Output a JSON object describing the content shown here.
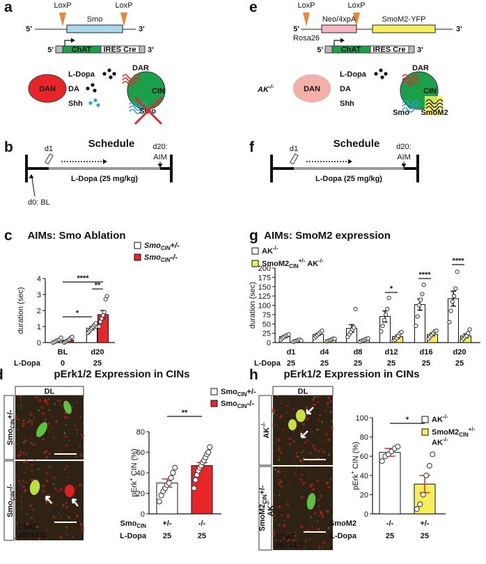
{
  "figure": {
    "a": {
      "letter": "a",
      "loxp": [
        "LoxP",
        "LoxP"
      ],
      "five": "5'",
      "gene": "Smo",
      "three": "3'",
      "driver": {
        "five": "5'",
        "chat": "ChAT",
        "ires": "IRES Cre",
        "three": "3'"
      },
      "dan": "DAN",
      "l_dopa": "L-Dopa",
      "da": "DA",
      "shh": "Shh",
      "dar": "DAR",
      "cin": "CIN",
      "smo": "Smo"
    },
    "e": {
      "letter": "e",
      "loxp": [
        "LoxP",
        "LoxP"
      ],
      "five": "5'",
      "stop": "Neo/4xpA",
      "gene": "SmoM2-YFP",
      "three": "3'",
      "locus": "Rosa26",
      "driver": {
        "five": "5'",
        "chat": "ChAT",
        "ires": "IRES Cre",
        "three": "3'"
      },
      "genotype": [
        {
          "text": "AK",
          "sup": "-/-"
        }
      ],
      "dan": "DAN",
      "l_dopa": "L-Dopa",
      "da": "DA",
      "shh": "Shh",
      "dar": "DAR",
      "cin": "CIN",
      "smo": "Smo",
      "smom2": "SmoM2"
    },
    "b": {
      "letter": "b",
      "title": "Schedule",
      "d1": "d1",
      "end": "d20:",
      "aim": "AIM",
      "drug": "L-Dopa (25 mg/kg)",
      "start": "d0: BL"
    },
    "f": {
      "letter": "f",
      "title": "Schedule",
      "d1": "d1",
      "end": "d20:",
      "aim": "AIM",
      "drug": "L-Dopa (25 mg/kg)"
    },
    "d": {
      "letter": "d",
      "title": "pErk1/2 Expression in CINs",
      "region": "DL",
      "rows": [
        [
          [
            {
              "text": "Smo",
              "sub": "CIN",
              "suffix": "+/-"
            }
          ]
        ],
        [
          [
            {
              "text": "Smo",
              "sub": "CIN",
              "suffix": "-/-"
            }
          ]
        ]
      ],
      "stain1": "ChAT",
      "stain2": "pErk1/2"
    },
    "h": {
      "letter": "h",
      "title": "pErk1/2 Expression in CINs",
      "region": "DL",
      "rows": [
        [
          [
            {
              "text": "AK",
              "sup": "-/-"
            }
          ]
        ],
        [
          [
            {
              "text": "SmoM2",
              "sub": "CIN",
              "suffix": "+/-"
            }
          ],
          [
            {
              "text": "AK",
              "sup": "-/-"
            }
          ]
        ]
      ],
      "stain1": "ChAT",
      "stain2": "pErk1/2"
    }
  },
  "chart_data": [
    {
      "type": "bar",
      "letter": "c",
      "title": "AIMs: Smo Ablation",
      "ylabel": [
        {
          "text": "duration (sec)"
        }
      ],
      "categories": [
        "BL",
        "d20"
      ],
      "row_label": "L-Dopa",
      "row_values": [
        0,
        25
      ],
      "ylim": [
        0,
        4
      ],
      "yticks": [
        0,
        1,
        2,
        3,
        4
      ],
      "significance": [
        "*",
        "****",
        "**"
      ],
      "series": [
        {
          "name": [
            [
              {
                "text": "Smo",
                "sub": "CIN",
                "suffix": "+/-"
              }
            ]
          ],
          "color": "#ffffff",
          "values": [
            0.1,
            0.9
          ],
          "errors": [
            0.05,
            0.1
          ],
          "points": [
            [
              0,
              0.05,
              0.1,
              0.15,
              0.2,
              0.3
            ],
            [
              0.6,
              0.7,
              0.8,
              0.9,
              1.0,
              1.1,
              1.2
            ]
          ]
        },
        {
          "name": [
            [
              {
                "text": "Smo",
                "sub": "CIN",
                "suffix": "-/-"
              }
            ]
          ],
          "color": "#e8262a",
          "values": [
            0.15,
            1.75
          ],
          "errors": [
            0.05,
            0.25
          ],
          "points": [
            [
              0,
              0.05,
              0.1,
              0.15,
              0.2,
              0.3,
              0.35
            ],
            [
              1.0,
              1.3,
              1.5,
              1.7,
              1.9,
              2.7,
              2.9
            ]
          ]
        }
      ]
    },
    {
      "type": "bar",
      "letter": "g",
      "title": "AIMs: SmoM2 expression",
      "ylabel": [
        {
          "text": "duration (sec)"
        }
      ],
      "categories": [
        "d1",
        "d4",
        "d8",
        "d12",
        "d16",
        "d20"
      ],
      "row_label": "L-Dopa",
      "row_values": [
        25,
        25,
        25,
        25,
        25,
        25
      ],
      "ylim": [
        0,
        200
      ],
      "yticks": [
        0,
        25,
        50,
        75,
        100,
        125,
        150,
        175,
        200
      ],
      "significance": [
        "*",
        "****",
        "****"
      ],
      "series": [
        {
          "name": [
            [
              {
                "text": "AK",
                "sup": "-/-"
              }
            ]
          ],
          "color": "#ffffff",
          "values": [
            16,
            22,
            38,
            70,
            102,
            118
          ],
          "errors": [
            3,
            3,
            10,
            15,
            15,
            20
          ],
          "points": [
            [
              8,
              12,
              15,
              18,
              20,
              22
            ],
            [
              12,
              16,
              20,
              24,
              28,
              32
            ],
            [
              15,
              22,
              28,
              35,
              40,
              90
            ],
            [
              30,
              45,
              60,
              75,
              90,
              120
            ],
            [
              45,
              70,
              100,
              115,
              130,
              155
            ],
            [
              55,
              85,
              110,
              125,
              145,
              190
            ]
          ]
        },
        {
          "name": [
            [
              {
                "text": "SmoM2",
                "sub": "CIN",
                "sup": "+/-"
              },
              {
                "text": "AK",
                "sup": "-/-"
              }
            ]
          ],
          "color": "#f6ee5a",
          "values": [
            5,
            7,
            7,
            16,
            22,
            18
          ],
          "errors": [
            1,
            1,
            2,
            4,
            4,
            5
          ],
          "points": [
            [
              2,
              4,
              5,
              6,
              8,
              5
            ],
            [
              3,
              5,
              6,
              8,
              10,
              10
            ],
            [
              2,
              5,
              6,
              8,
              10,
              11
            ],
            [
              5,
              8,
              12,
              18,
              25,
              28
            ],
            [
              10,
              15,
              20,
              25,
              30,
              32
            ],
            [
              5,
              10,
              15,
              18,
              25,
              35
            ]
          ]
        }
      ]
    },
    {
      "type": "bar",
      "ylabel": [
        {
          "text": "pErk",
          "sup": "+"
        },
        {
          "text": "CIN (%)"
        }
      ],
      "categories": [
        "+/-",
        "-/-"
      ],
      "group_label": [
        {
          "text": "Smo",
          "sub": "CIN"
        }
      ],
      "row_label": "L-Dopa",
      "row_values": [
        25,
        25
      ],
      "values": [
        30,
        47
      ],
      "errors": [
        4,
        3
      ],
      "colors": [
        "#ffffff",
        "#e8262a"
      ],
      "points": [
        [
          12,
          18,
          22,
          25,
          28,
          30,
          35,
          40,
          45
        ],
        [
          25,
          33,
          38,
          42,
          45,
          47,
          50,
          52,
          55,
          58,
          60,
          65
        ]
      ],
      "legend": [
        [
          [
            {
              "text": "Smo",
              "sub": "CIN",
              "suffix": "+/-"
            }
          ]
        ],
        [
          [
            {
              "text": "Smo",
              "sub": "CIN",
              "suffix": "-/-"
            }
          ]
        ]
      ],
      "ylim": [
        0,
        80
      ],
      "yticks": [
        0,
        20,
        40,
        60,
        80
      ],
      "significance": [
        "**"
      ]
    },
    {
      "type": "bar",
      "ylabel": [
        {
          "text": "pErk",
          "sup": "+"
        },
        {
          "text": "CIN (%)"
        }
      ],
      "categories": [
        "-/-",
        "+/-"
      ],
      "group_label": [
        {
          "text": "SmoM2"
        }
      ],
      "row_label": "L-Dopa",
      "row_values": [
        25,
        25
      ],
      "values": [
        64,
        31
      ],
      "errors": [
        4,
        9
      ],
      "colors": [
        "#ffffff",
        "#f6ee5a"
      ],
      "points": [
        [
          55,
          60,
          62,
          65,
          68,
          70
        ],
        [
          5,
          10,
          20,
          40,
          50,
          62
        ]
      ],
      "legend": [
        [
          [
            {
              "text": "AK",
              "sup": "-/-"
            }
          ]
        ],
        [
          [
            {
              "text": "SmoM2",
              "sub": "CIN",
              "sup": "+/-"
            }
          ],
          [
            {
              "text": "AK",
              "sup": "-/-"
            }
          ]
        ]
      ],
      "ylim": [
        0,
        100
      ],
      "yticks": [
        0,
        20,
        40,
        60,
        80,
        100
      ],
      "significance": [
        "*"
      ]
    }
  ]
}
